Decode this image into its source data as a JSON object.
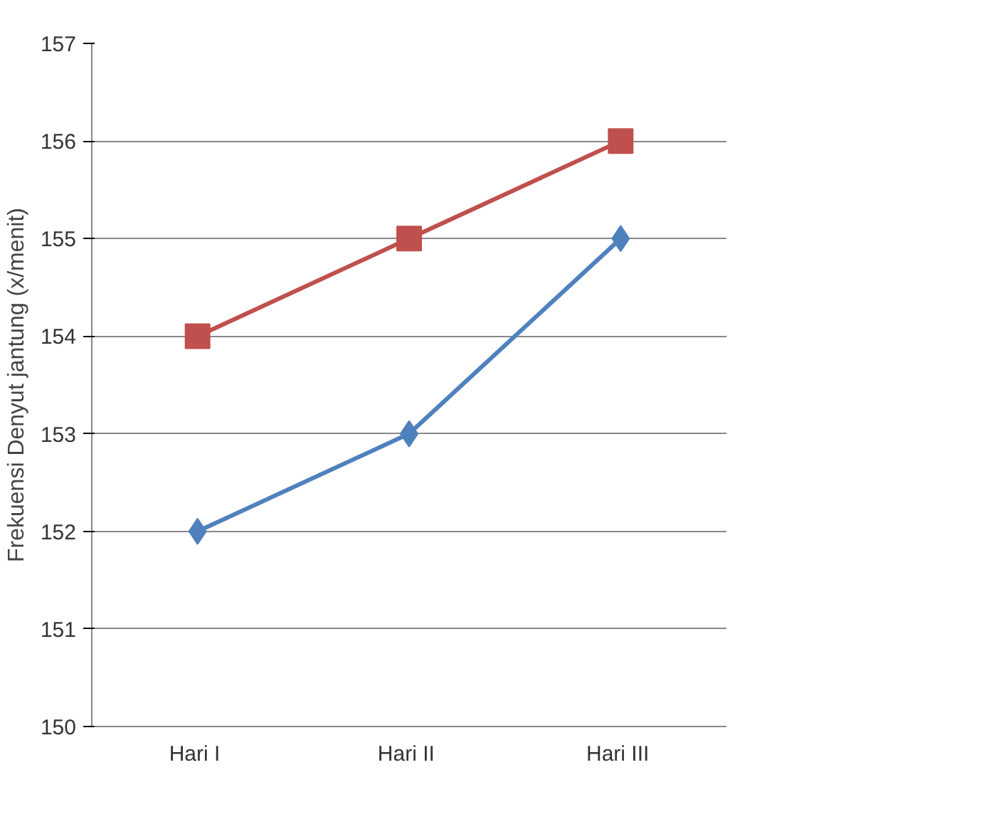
{
  "chart_data": {
    "type": "line",
    "ylabel": "Frekuensi Denyut jantung (x/menit)",
    "categories": [
      "Hari  I",
      "Hari  II",
      "Hari  III"
    ],
    "series": [
      {
        "color": "#c0504d",
        "values": [
          154,
          155,
          156
        ],
        "marker": "square"
      },
      {
        "color": "#4f81bd",
        "values": [
          152,
          153,
          155
        ],
        "marker": "diamond"
      }
    ],
    "ylim": [
      150,
      157
    ],
    "yticks": [
      150,
      151,
      152,
      153,
      154,
      155,
      156,
      157
    ],
    "grid": "y",
    "line_style": "solid"
  }
}
